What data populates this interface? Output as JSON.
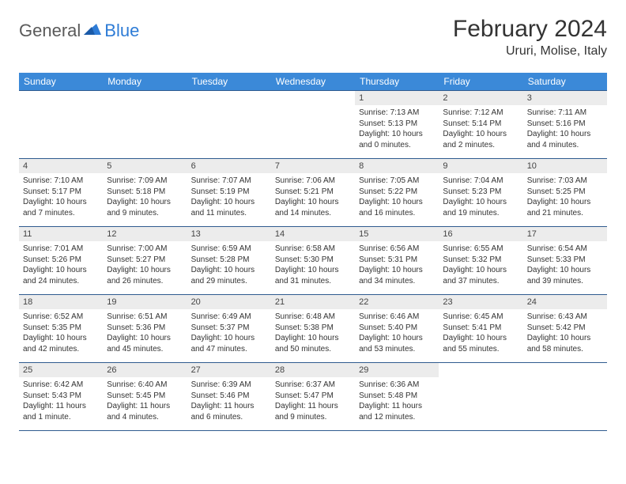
{
  "logo": {
    "part1": "General",
    "part2": "Blue"
  },
  "title": "February 2024",
  "location": "Ururi, Molise, Italy",
  "accent": "#3b89d8",
  "border": "#2f5b8f",
  "daybg": "#ececec",
  "headers": [
    "Sunday",
    "Monday",
    "Tuesday",
    "Wednesday",
    "Thursday",
    "Friday",
    "Saturday"
  ],
  "weeks": [
    [
      null,
      null,
      null,
      null,
      {
        "n": "1",
        "sr": "7:13 AM",
        "ss": "5:13 PM",
        "dl": "10 hours and 0 minutes."
      },
      {
        "n": "2",
        "sr": "7:12 AM",
        "ss": "5:14 PM",
        "dl": "10 hours and 2 minutes."
      },
      {
        "n": "3",
        "sr": "7:11 AM",
        "ss": "5:16 PM",
        "dl": "10 hours and 4 minutes."
      }
    ],
    [
      {
        "n": "4",
        "sr": "7:10 AM",
        "ss": "5:17 PM",
        "dl": "10 hours and 7 minutes."
      },
      {
        "n": "5",
        "sr": "7:09 AM",
        "ss": "5:18 PM",
        "dl": "10 hours and 9 minutes."
      },
      {
        "n": "6",
        "sr": "7:07 AM",
        "ss": "5:19 PM",
        "dl": "10 hours and 11 minutes."
      },
      {
        "n": "7",
        "sr": "7:06 AM",
        "ss": "5:21 PM",
        "dl": "10 hours and 14 minutes."
      },
      {
        "n": "8",
        "sr": "7:05 AM",
        "ss": "5:22 PM",
        "dl": "10 hours and 16 minutes."
      },
      {
        "n": "9",
        "sr": "7:04 AM",
        "ss": "5:23 PM",
        "dl": "10 hours and 19 minutes."
      },
      {
        "n": "10",
        "sr": "7:03 AM",
        "ss": "5:25 PM",
        "dl": "10 hours and 21 minutes."
      }
    ],
    [
      {
        "n": "11",
        "sr": "7:01 AM",
        "ss": "5:26 PM",
        "dl": "10 hours and 24 minutes."
      },
      {
        "n": "12",
        "sr": "7:00 AM",
        "ss": "5:27 PM",
        "dl": "10 hours and 26 minutes."
      },
      {
        "n": "13",
        "sr": "6:59 AM",
        "ss": "5:28 PM",
        "dl": "10 hours and 29 minutes."
      },
      {
        "n": "14",
        "sr": "6:58 AM",
        "ss": "5:30 PM",
        "dl": "10 hours and 31 minutes."
      },
      {
        "n": "15",
        "sr": "6:56 AM",
        "ss": "5:31 PM",
        "dl": "10 hours and 34 minutes."
      },
      {
        "n": "16",
        "sr": "6:55 AM",
        "ss": "5:32 PM",
        "dl": "10 hours and 37 minutes."
      },
      {
        "n": "17",
        "sr": "6:54 AM",
        "ss": "5:33 PM",
        "dl": "10 hours and 39 minutes."
      }
    ],
    [
      {
        "n": "18",
        "sr": "6:52 AM",
        "ss": "5:35 PM",
        "dl": "10 hours and 42 minutes."
      },
      {
        "n": "19",
        "sr": "6:51 AM",
        "ss": "5:36 PM",
        "dl": "10 hours and 45 minutes."
      },
      {
        "n": "20",
        "sr": "6:49 AM",
        "ss": "5:37 PM",
        "dl": "10 hours and 47 minutes."
      },
      {
        "n": "21",
        "sr": "6:48 AM",
        "ss": "5:38 PM",
        "dl": "10 hours and 50 minutes."
      },
      {
        "n": "22",
        "sr": "6:46 AM",
        "ss": "5:40 PM",
        "dl": "10 hours and 53 minutes."
      },
      {
        "n": "23",
        "sr": "6:45 AM",
        "ss": "5:41 PM",
        "dl": "10 hours and 55 minutes."
      },
      {
        "n": "24",
        "sr": "6:43 AM",
        "ss": "5:42 PM",
        "dl": "10 hours and 58 minutes."
      }
    ],
    [
      {
        "n": "25",
        "sr": "6:42 AM",
        "ss": "5:43 PM",
        "dl": "11 hours and 1 minute."
      },
      {
        "n": "26",
        "sr": "6:40 AM",
        "ss": "5:45 PM",
        "dl": "11 hours and 4 minutes."
      },
      {
        "n": "27",
        "sr": "6:39 AM",
        "ss": "5:46 PM",
        "dl": "11 hours and 6 minutes."
      },
      {
        "n": "28",
        "sr": "6:37 AM",
        "ss": "5:47 PM",
        "dl": "11 hours and 9 minutes."
      },
      {
        "n": "29",
        "sr": "6:36 AM",
        "ss": "5:48 PM",
        "dl": "11 hours and 12 minutes."
      },
      null,
      null
    ]
  ],
  "labels": {
    "sunrise": "Sunrise: ",
    "sunset": "Sunset: ",
    "daylight": "Daylight: "
  }
}
